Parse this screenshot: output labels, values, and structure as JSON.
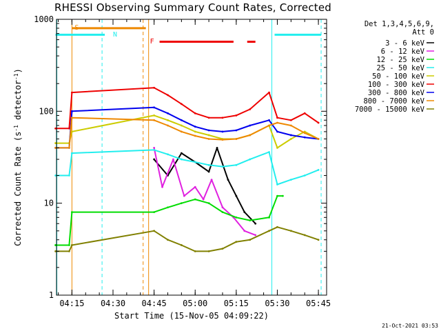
{
  "chart_data": {
    "type": "line",
    "title": "RHESSI Observing Summary Count Rates, Corrected",
    "xlabel": "Start Time (15-Nov-05 04:09:22)",
    "ylabel_main": "Corrected Count Rate (s",
    "ylabel_sup1": "-1",
    "ylabel_mid": " detector",
    "ylabel_sup2": "-1",
    "ylabel_end": ")",
    "yscale": "log",
    "ylim": [
      1,
      1000
    ],
    "xlim_minutes": [
      "04:09:22",
      "05:48:00"
    ],
    "x_ticks": [
      "04:15",
      "04:30",
      "04:45",
      "05:00",
      "05:15",
      "05:30",
      "05:45"
    ],
    "y_ticks": [
      {
        "value": 1,
        "label": "1"
      },
      {
        "value": 10,
        "label": "10"
      },
      {
        "value": 100,
        "label": "100"
      },
      {
        "value": 1000,
        "label": "1000"
      }
    ],
    "legend": {
      "placement": "right",
      "header": [
        "Det 1,3,4,5,6,9,",
        "Att 0"
      ],
      "entries": [
        {
          "label": "3 - 6 keV",
          "color": "#000000"
        },
        {
          "label": "6 - 12 keV",
          "color": "#e020e0"
        },
        {
          "label": "12 - 25 keV",
          "color": "#00dd00"
        },
        {
          "label": "25 - 50 keV",
          "color": "#22eeee"
        },
        {
          "label": "50 - 100 keV",
          "color": "#cccc00"
        },
        {
          "label": "100 - 300 keV",
          "color": "#ee0000"
        },
        {
          "label": "300 - 800 keV",
          "color": "#0000ee"
        },
        {
          "label": "800 - 7000 keV",
          "color": "#ee8800"
        },
        {
          "label": "7000 - 15000 keV",
          "color": "#808000"
        }
      ]
    },
    "annotations": [
      {
        "label": "S",
        "color": "#ee8800"
      },
      {
        "label": "N",
        "color": "#22eeee"
      },
      {
        "label": "F",
        "color": "#ee0000"
      }
    ],
    "state_bars": [
      {
        "name": "S",
        "color": "#ee8800",
        "start": "04:15",
        "end": "04:42"
      },
      {
        "name": "N",
        "color": "#22eeee",
        "start": "04:09",
        "end": "04:27"
      },
      {
        "name": "N",
        "color": "#22eeee",
        "start": "05:29",
        "end": "05:46"
      },
      {
        "name": "F",
        "color": "#ee0000",
        "start": "04:47",
        "end": "05:14"
      },
      {
        "name": "F",
        "color": "#ee0000",
        "start": "05:19",
        "end": "05:22"
      }
    ],
    "vertical_markers": [
      {
        "time": "04:09:30",
        "color": "#22eeee",
        "style": "solid"
      },
      {
        "time": "04:15",
        "color": "#ee8800",
        "style": "solid"
      },
      {
        "time": "04:26",
        "color": "#22eeee",
        "style": "dashed"
      },
      {
        "time": "04:41",
        "color": "#ee8800",
        "style": "dashed"
      },
      {
        "time": "04:43",
        "color": "#ee8800",
        "style": "solid"
      },
      {
        "time": "05:28",
        "color": "#22eeee",
        "style": "solid"
      },
      {
        "time": "05:46",
        "color": "#22eeee",
        "style": "dashed"
      }
    ],
    "series": [
      {
        "name": "3 - 6 keV",
        "color": "#000000",
        "points": [
          [
            "04:45",
            30
          ],
          [
            "04:50",
            20
          ],
          [
            "04:55",
            35
          ],
          [
            "05:00",
            28
          ],
          [
            "05:05",
            22
          ],
          [
            "05:08",
            40
          ],
          [
            "05:12",
            18
          ],
          [
            "05:15",
            12
          ],
          [
            "05:18",
            8
          ],
          [
            "05:22",
            6
          ]
        ]
      },
      {
        "name": "6 - 12 keV",
        "color": "#e020e0",
        "points": [
          [
            "04:45",
            40
          ],
          [
            "04:48",
            15
          ],
          [
            "04:52",
            30
          ],
          [
            "04:56",
            12
          ],
          [
            "05:00",
            15
          ],
          [
            "05:03",
            11
          ],
          [
            "05:06",
            18
          ],
          [
            "05:10",
            9
          ],
          [
            "05:14",
            7
          ],
          [
            "05:18",
            5
          ],
          [
            "05:22",
            4.5
          ]
        ]
      },
      {
        "name": "12 - 25 keV",
        "color": "#00dd00",
        "points": [
          [
            "04:09",
            3.5
          ],
          [
            "04:14",
            3.5
          ],
          [
            "04:15",
            8
          ],
          [
            "04:45",
            8
          ],
          [
            "04:50",
            9
          ],
          [
            "04:55",
            10
          ],
          [
            "05:00",
            11
          ],
          [
            "05:05",
            10
          ],
          [
            "05:10",
            8
          ],
          [
            "05:15",
            7
          ],
          [
            "05:20",
            6.5
          ],
          [
            "05:27",
            7
          ],
          [
            "05:30",
            12
          ],
          [
            "05:32",
            12
          ]
        ]
      },
      {
        "name": "25 - 50 keV",
        "color": "#22eeee",
        "points": [
          [
            "04:09",
            20
          ],
          [
            "04:14",
            20
          ],
          [
            "04:15",
            35
          ],
          [
            "04:45",
            38
          ],
          [
            "04:50",
            34
          ],
          [
            "04:55",
            30
          ],
          [
            "05:00",
            28
          ],
          [
            "05:05",
            26
          ],
          [
            "05:10",
            25
          ],
          [
            "05:15",
            26
          ],
          [
            "05:20",
            30
          ],
          [
            "05:27",
            36
          ],
          [
            "05:30",
            16
          ],
          [
            "05:35",
            18
          ],
          [
            "05:40",
            20
          ],
          [
            "05:45",
            23
          ]
        ]
      },
      {
        "name": "50 - 100 keV",
        "color": "#cccc00",
        "points": [
          [
            "04:09",
            45
          ],
          [
            "04:14",
            45
          ],
          [
            "04:15",
            60
          ],
          [
            "04:45",
            90
          ],
          [
            "04:50",
            80
          ],
          [
            "04:55",
            70
          ],
          [
            "05:00",
            60
          ],
          [
            "05:05",
            55
          ],
          [
            "05:10",
            50
          ],
          [
            "05:15",
            50
          ],
          [
            "05:20",
            55
          ],
          [
            "05:27",
            70
          ],
          [
            "05:30",
            40
          ],
          [
            "05:35",
            50
          ],
          [
            "05:40",
            60
          ],
          [
            "05:45",
            50
          ]
        ]
      },
      {
        "name": "100 - 300 keV",
        "color": "#ee0000",
        "points": [
          [
            "04:09",
            65
          ],
          [
            "04:14",
            65
          ],
          [
            "04:15",
            160
          ],
          [
            "04:45",
            180
          ],
          [
            "04:50",
            150
          ],
          [
            "04:55",
            120
          ],
          [
            "05:00",
            95
          ],
          [
            "05:05",
            85
          ],
          [
            "05:10",
            85
          ],
          [
            "05:15",
            90
          ],
          [
            "05:20",
            105
          ],
          [
            "05:27",
            160
          ],
          [
            "05:30",
            85
          ],
          [
            "05:35",
            80
          ],
          [
            "05:40",
            95
          ],
          [
            "05:45",
            75
          ]
        ]
      },
      {
        "name": "300 - 800 keV",
        "color": "#0000ee",
        "points": [
          [
            "04:09",
            40
          ],
          [
            "04:14",
            40
          ],
          [
            "04:15",
            100
          ],
          [
            "04:45",
            110
          ],
          [
            "04:50",
            95
          ],
          [
            "04:55",
            80
          ],
          [
            "05:00",
            68
          ],
          [
            "05:05",
            62
          ],
          [
            "05:10",
            60
          ],
          [
            "05:15",
            62
          ],
          [
            "05:20",
            70
          ],
          [
            "05:27",
            80
          ],
          [
            "05:30",
            60
          ],
          [
            "05:35",
            55
          ],
          [
            "05:40",
            52
          ],
          [
            "05:45",
            50
          ]
        ]
      },
      {
        "name": "800 - 7000 keV",
        "color": "#ee8800",
        "points": [
          [
            "04:09",
            40
          ],
          [
            "04:14",
            40
          ],
          [
            "04:15",
            85
          ],
          [
            "04:45",
            80
          ],
          [
            "04:50",
            70
          ],
          [
            "04:55",
            60
          ],
          [
            "05:00",
            54
          ],
          [
            "05:05",
            50
          ],
          [
            "05:10",
            49
          ],
          [
            "05:15",
            50
          ],
          [
            "05:20",
            55
          ],
          [
            "05:27",
            70
          ],
          [
            "05:30",
            75
          ],
          [
            "05:35",
            70
          ],
          [
            "05:40",
            58
          ],
          [
            "05:45",
            50
          ]
        ]
      },
      {
        "name": "7000 - 15000 keV",
        "color": "#808000",
        "points": [
          [
            "04:09",
            3
          ],
          [
            "04:14",
            3
          ],
          [
            "04:15",
            3.5
          ],
          [
            "04:45",
            5
          ],
          [
            "04:50",
            4
          ],
          [
            "04:55",
            3.5
          ],
          [
            "05:00",
            3
          ],
          [
            "05:05",
            3
          ],
          [
            "05:10",
            3.2
          ],
          [
            "05:15",
            3.8
          ],
          [
            "05:20",
            4
          ],
          [
            "05:27",
            5
          ],
          [
            "05:30",
            5.5
          ],
          [
            "05:35",
            5
          ],
          [
            "05:40",
            4.5
          ],
          [
            "05:45",
            4
          ]
        ]
      }
    ]
  },
  "footer_timestamp": "21-Oct-2021 03:53"
}
